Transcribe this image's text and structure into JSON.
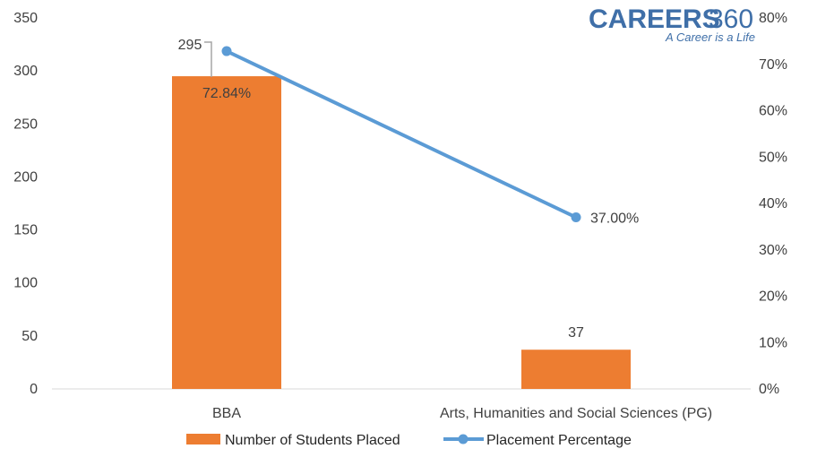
{
  "logo": {
    "brand": "CAREERS",
    "number": "360",
    "tagline": "A Career is a Life"
  },
  "chart_data": {
    "type": "bar",
    "categories": [
      "BBA",
      "Arts, Humanities and Social Sciences (PG)"
    ],
    "series": [
      {
        "name": "Number of Students Placed",
        "type": "bar",
        "axis": "left",
        "values": [
          295,
          37
        ],
        "labels": [
          "295",
          "37"
        ],
        "color": "#ed7d31"
      },
      {
        "name": "Placement Percentage",
        "type": "line",
        "axis": "right",
        "values": [
          72.84,
          37.0
        ],
        "labels": [
          "72.84%",
          "37.00%"
        ],
        "color": "#5b9bd5"
      }
    ],
    "ylim": [
      0,
      350
    ],
    "y_ticks": [
      "0",
      "50",
      "100",
      "150",
      "200",
      "250",
      "300",
      "350"
    ],
    "y2lim": [
      0,
      80
    ],
    "y2_ticks": [
      "0%",
      "10%",
      "20%",
      "30%",
      "40%",
      "50%",
      "60%",
      "70%",
      "80%"
    ],
    "legend_position": "bottom",
    "grid": false
  }
}
